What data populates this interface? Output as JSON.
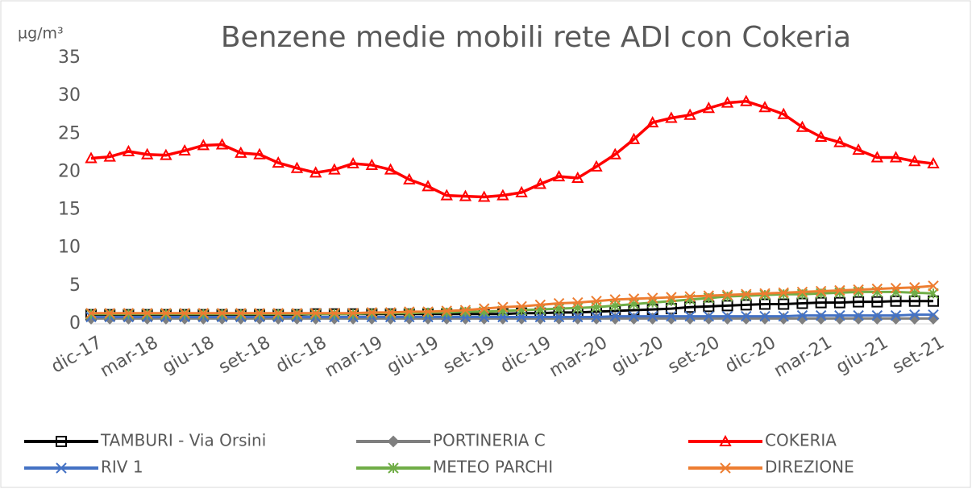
{
  "chart_data": {
    "type": "line",
    "title": "Benzene medie mobili rete ADI con Cokeria",
    "y_label": "µg/m³",
    "categories": [
      "dic-17",
      null,
      null,
      "mar-18",
      null,
      null,
      "giu-18",
      null,
      null,
      "set-18",
      null,
      null,
      "dic-18",
      null,
      null,
      "mar-19",
      null,
      null,
      "giu-19",
      null,
      null,
      "set-19",
      null,
      null,
      "dic-19",
      null,
      null,
      "mar-20",
      null,
      null,
      "giu-20",
      null,
      null,
      "set-20",
      null,
      null,
      "dic-20",
      null,
      null,
      "mar-21",
      null,
      null,
      "giu-21",
      null,
      null,
      "set-21"
    ],
    "ylim": [
      0,
      35
    ],
    "yticks": [
      0,
      5,
      10,
      15,
      20,
      25,
      30,
      35
    ],
    "grid": false,
    "series": [
      {
        "name": "TAMBURI - Via Orsini",
        "color": "#000000",
        "marker": "square",
        "values": [
          1.2,
          1.2,
          1.2,
          1.2,
          1.2,
          1.2,
          1.2,
          1.2,
          1.2,
          1.2,
          1.2,
          1.2,
          1.3,
          1.3,
          1.3,
          1.3,
          1.3,
          1.3,
          1.3,
          1.3,
          1.3,
          1.3,
          1.3,
          1.4,
          1.4,
          1.5,
          1.5,
          1.6,
          1.7,
          1.8,
          1.9,
          2.0,
          2.2,
          2.3,
          2.4,
          2.5,
          2.6,
          2.6,
          2.7,
          2.8,
          2.8,
          2.9,
          2.9,
          3.0,
          3.0,
          3.0
        ]
      },
      {
        "name": "PORTINERIA C",
        "color": "#7f7f7f",
        "marker": "diamond",
        "values": [
          0.7,
          0.7,
          0.7,
          0.7,
          0.7,
          0.7,
          0.7,
          0.7,
          0.7,
          0.7,
          0.7,
          0.7,
          0.7,
          0.7,
          0.7,
          0.7,
          0.7,
          0.7,
          0.7,
          0.7,
          0.7,
          0.7,
          0.7,
          0.7,
          0.7,
          0.7,
          0.7,
          0.7,
          0.7,
          0.7,
          0.7,
          0.7,
          0.7,
          0.7,
          0.7,
          0.7,
          0.7,
          0.7,
          0.7,
          0.7,
          0.7,
          0.7,
          0.7,
          0.7,
          0.7,
          0.7
        ]
      },
      {
        "name": "COKERIA",
        "color": "#ff0000",
        "marker": "triangle",
        "values": [
          21.8,
          22.0,
          22.7,
          22.3,
          22.2,
          22.8,
          23.5,
          23.6,
          22.5,
          22.3,
          21.2,
          20.5,
          19.9,
          20.3,
          21.1,
          20.9,
          20.3,
          19.0,
          18.1,
          16.9,
          16.8,
          16.7,
          16.9,
          17.3,
          18.4,
          19.4,
          19.2,
          20.7,
          22.3,
          24.3,
          26.5,
          27.1,
          27.5,
          28.4,
          29.1,
          29.3,
          28.5,
          27.6,
          25.9,
          24.6,
          23.9,
          22.9,
          21.9,
          21.9,
          21.4,
          21.1
        ]
      },
      {
        "name": "RIV 1",
        "color": "#4472c4",
        "marker": "x",
        "values": [
          0.9,
          0.9,
          0.9,
          0.9,
          0.9,
          0.9,
          0.9,
          0.9,
          0.9,
          0.9,
          0.9,
          0.9,
          0.9,
          0.9,
          0.9,
          0.9,
          0.9,
          0.9,
          0.9,
          0.9,
          0.9,
          0.9,
          0.9,
          0.9,
          0.9,
          0.9,
          0.9,
          0.9,
          1.0,
          1.0,
          1.0,
          1.0,
          1.0,
          1.0,
          1.0,
          1.0,
          1.0,
          1.0,
          1.1,
          1.1,
          1.1,
          1.1,
          1.1,
          1.1,
          1.2,
          1.2
        ]
      },
      {
        "name": "METEO PARCHI",
        "color": "#70ad47",
        "marker": "star",
        "values": [
          1.3,
          1.3,
          1.3,
          1.3,
          1.3,
          1.3,
          1.3,
          1.3,
          1.3,
          1.3,
          1.3,
          1.3,
          1.3,
          1.3,
          1.3,
          1.4,
          1.4,
          1.4,
          1.5,
          1.5,
          1.6,
          1.6,
          1.7,
          1.8,
          1.9,
          2.0,
          2.1,
          2.2,
          2.4,
          2.6,
          2.8,
          3.0,
          3.2,
          3.4,
          3.6,
          3.7,
          3.8,
          3.9,
          3.9,
          4.0,
          4.1,
          4.2,
          4.2,
          4.2,
          4.1,
          4.0
        ]
      },
      {
        "name": "DIREZIONE",
        "color": "#ed7d31",
        "marker": "x",
        "values": [
          1.4,
          1.4,
          1.4,
          1.4,
          1.4,
          1.4,
          1.4,
          1.4,
          1.4,
          1.4,
          1.4,
          1.4,
          1.4,
          1.4,
          1.4,
          1.5,
          1.5,
          1.6,
          1.6,
          1.7,
          1.8,
          2.0,
          2.2,
          2.3,
          2.5,
          2.7,
          2.8,
          3.0,
          3.2,
          3.3,
          3.4,
          3.5,
          3.6,
          3.7,
          3.8,
          3.9,
          4.0,
          4.1,
          4.2,
          4.3,
          4.4,
          4.5,
          4.6,
          4.7,
          4.8,
          5.0
        ]
      }
    ]
  }
}
